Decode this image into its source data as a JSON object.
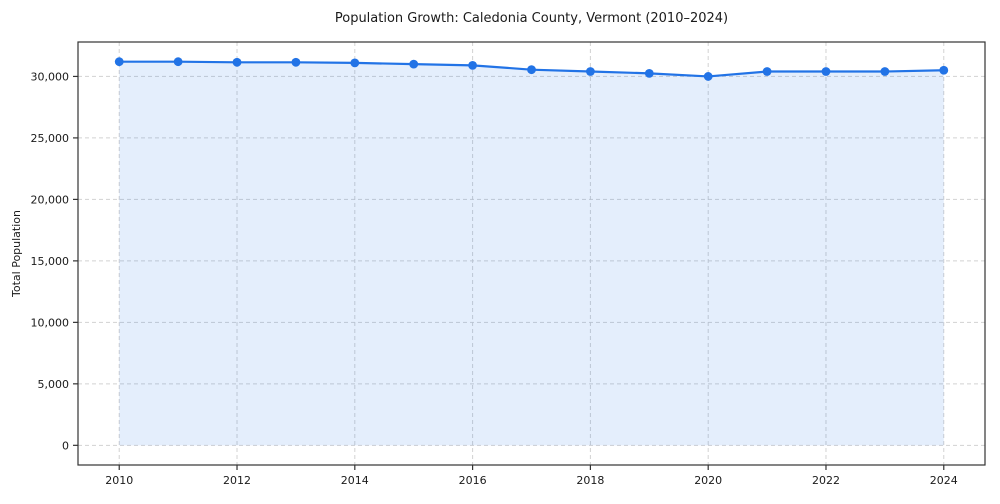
{
  "chart_data": {
    "type": "line",
    "title": "Population Growth: Caledonia County, Vermont (2010–2024)",
    "xlabel": "",
    "ylabel": "Total Population",
    "x": [
      2010,
      2011,
      2012,
      2013,
      2014,
      2015,
      2016,
      2017,
      2018,
      2019,
      2020,
      2021,
      2022,
      2023,
      2024
    ],
    "series": [
      {
        "name": "Total Population",
        "values": [
          31200,
          31200,
          31150,
          31150,
          31100,
          31000,
          30900,
          30550,
          30400,
          30250,
          30000,
          30400,
          30400,
          30400,
          30500
        ]
      }
    ],
    "x_ticks": [
      2010,
      2012,
      2014,
      2016,
      2018,
      2020,
      2022,
      2024
    ],
    "y_ticks": [
      0,
      5000,
      10000,
      15000,
      20000,
      25000,
      30000
    ],
    "xlim": [
      2009.3,
      2024.7
    ],
    "ylim": [
      -1600,
      32800
    ],
    "grid": true,
    "grid_style": "dashed",
    "legend": "none",
    "colors": {
      "line": "#2273e6",
      "marker": "#2273e6",
      "fill": "#2273e6",
      "fill_opacity": 0.12,
      "grid": "#cdcdcd",
      "spine": "#333333"
    }
  }
}
